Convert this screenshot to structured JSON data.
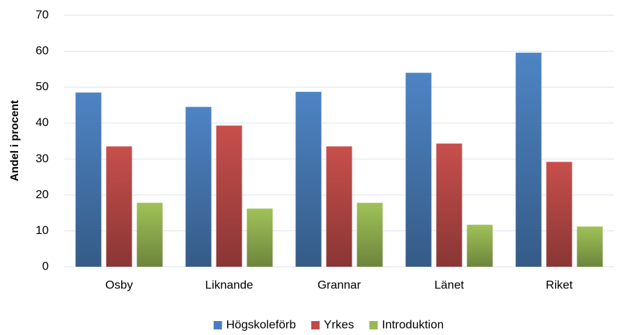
{
  "chart_data": {
    "type": "bar",
    "y_label": "Andel i procent",
    "categories": [
      "Osby",
      "Liknande",
      "Grannar",
      "Länet",
      "Riket"
    ],
    "series": [
      {
        "name": "Högskoleförb",
        "color": "#4a7ebb",
        "values": [
          48.5,
          44.5,
          48.7,
          54.0,
          59.6
        ]
      },
      {
        "name": "Yrkes",
        "color": "#be4b48",
        "values": [
          33.5,
          39.3,
          33.5,
          34.3,
          29.2
        ]
      },
      {
        "name": "Introduktion",
        "color": "#98b954",
        "values": [
          17.8,
          16.2,
          17.8,
          11.7,
          11.2
        ]
      }
    ],
    "ylim": [
      0,
      70
    ],
    "yticks": [
      0,
      10,
      20,
      30,
      40,
      50,
      60,
      70
    ],
    "grid": true,
    "legend": "bottom"
  }
}
